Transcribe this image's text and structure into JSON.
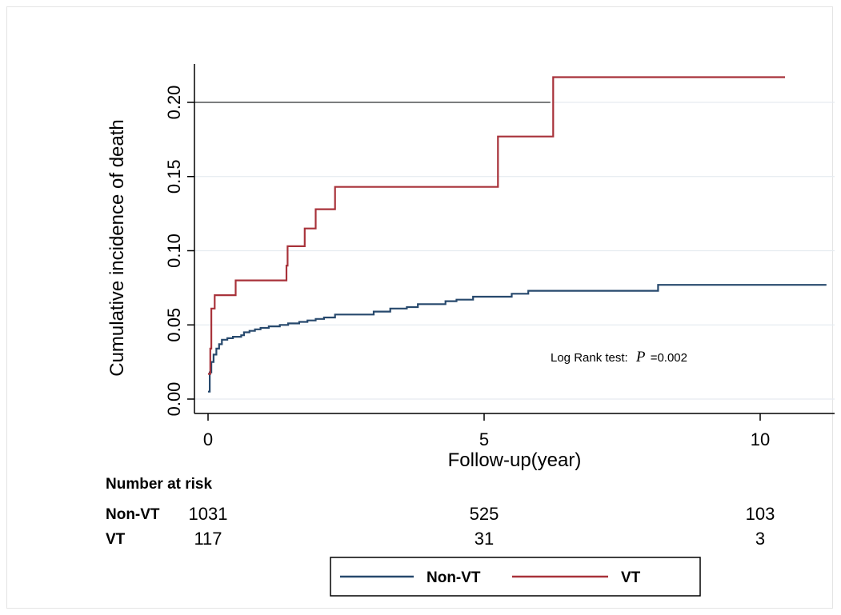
{
  "chart_data": {
    "type": "line",
    "step": true,
    "title": "",
    "xlabel": "Follow-up(year)",
    "ylabel": "Cumulative incidence of death",
    "xlim": [
      0,
      11.3
    ],
    "ylim": [
      -0.005,
      0.23
    ],
    "x_ticks": [
      0,
      5,
      10
    ],
    "x_tick_labels": [
      "0",
      "5",
      "10"
    ],
    "y_ticks": [
      0.0,
      0.05,
      0.1,
      0.15,
      0.2
    ],
    "y_tick_labels": [
      "0.00",
      "0.05",
      "0.10",
      "0.15",
      "0.20"
    ],
    "grid": "horizontal",
    "reference_line": {
      "y": 0.2,
      "x_end": 6.2
    },
    "series": [
      {
        "name": "Non-VT",
        "color": "#27496d",
        "points": [
          [
            0.0,
            0.005
          ],
          [
            0.03,
            0.018
          ],
          [
            0.06,
            0.025
          ],
          [
            0.1,
            0.03
          ],
          [
            0.15,
            0.034
          ],
          [
            0.2,
            0.037
          ],
          [
            0.25,
            0.04
          ],
          [
            0.35,
            0.041
          ],
          [
            0.45,
            0.042
          ],
          [
            0.6,
            0.043
          ],
          [
            0.65,
            0.045
          ],
          [
            0.75,
            0.046
          ],
          [
            0.85,
            0.047
          ],
          [
            0.95,
            0.048
          ],
          [
            1.1,
            0.049
          ],
          [
            1.3,
            0.05
          ],
          [
            1.45,
            0.051
          ],
          [
            1.65,
            0.052
          ],
          [
            1.8,
            0.053
          ],
          [
            1.95,
            0.054
          ],
          [
            2.1,
            0.055
          ],
          [
            2.3,
            0.057
          ],
          [
            3.0,
            0.059
          ],
          [
            3.3,
            0.061
          ],
          [
            3.6,
            0.062
          ],
          [
            3.8,
            0.064
          ],
          [
            4.3,
            0.066
          ],
          [
            4.5,
            0.067
          ],
          [
            4.8,
            0.069
          ],
          [
            5.2,
            0.069
          ],
          [
            5.5,
            0.071
          ],
          [
            5.8,
            0.073
          ],
          [
            8.15,
            0.077
          ],
          [
            11.2,
            0.077
          ]
        ]
      },
      {
        "name": "VT",
        "color": "#a8323a",
        "points": [
          [
            0.0,
            0.017
          ],
          [
            0.04,
            0.034
          ],
          [
            0.06,
            0.061
          ],
          [
            0.12,
            0.07
          ],
          [
            0.5,
            0.08
          ],
          [
            1.42,
            0.09
          ],
          [
            1.44,
            0.103
          ],
          [
            1.75,
            0.115
          ],
          [
            1.95,
            0.128
          ],
          [
            2.3,
            0.143
          ],
          [
            5.25,
            0.177
          ],
          [
            6.25,
            0.217
          ],
          [
            10.45,
            0.217
          ]
        ]
      }
    ],
    "annotation": {
      "prefix": "Log Rank test:",
      "p_symbol": "P",
      "p_value": "=0.002"
    },
    "number_at_risk": {
      "title": "Number at risk",
      "times": [
        0,
        5,
        10
      ],
      "groups": [
        {
          "label": "Non-VT",
          "values": [
            "1031",
            "525",
            "103"
          ]
        },
        {
          "label": "VT",
          "values": [
            "117",
            "31",
            "3"
          ]
        }
      ]
    },
    "legend": {
      "position": "bottom",
      "items": [
        "Non-VT",
        "VT"
      ]
    }
  }
}
